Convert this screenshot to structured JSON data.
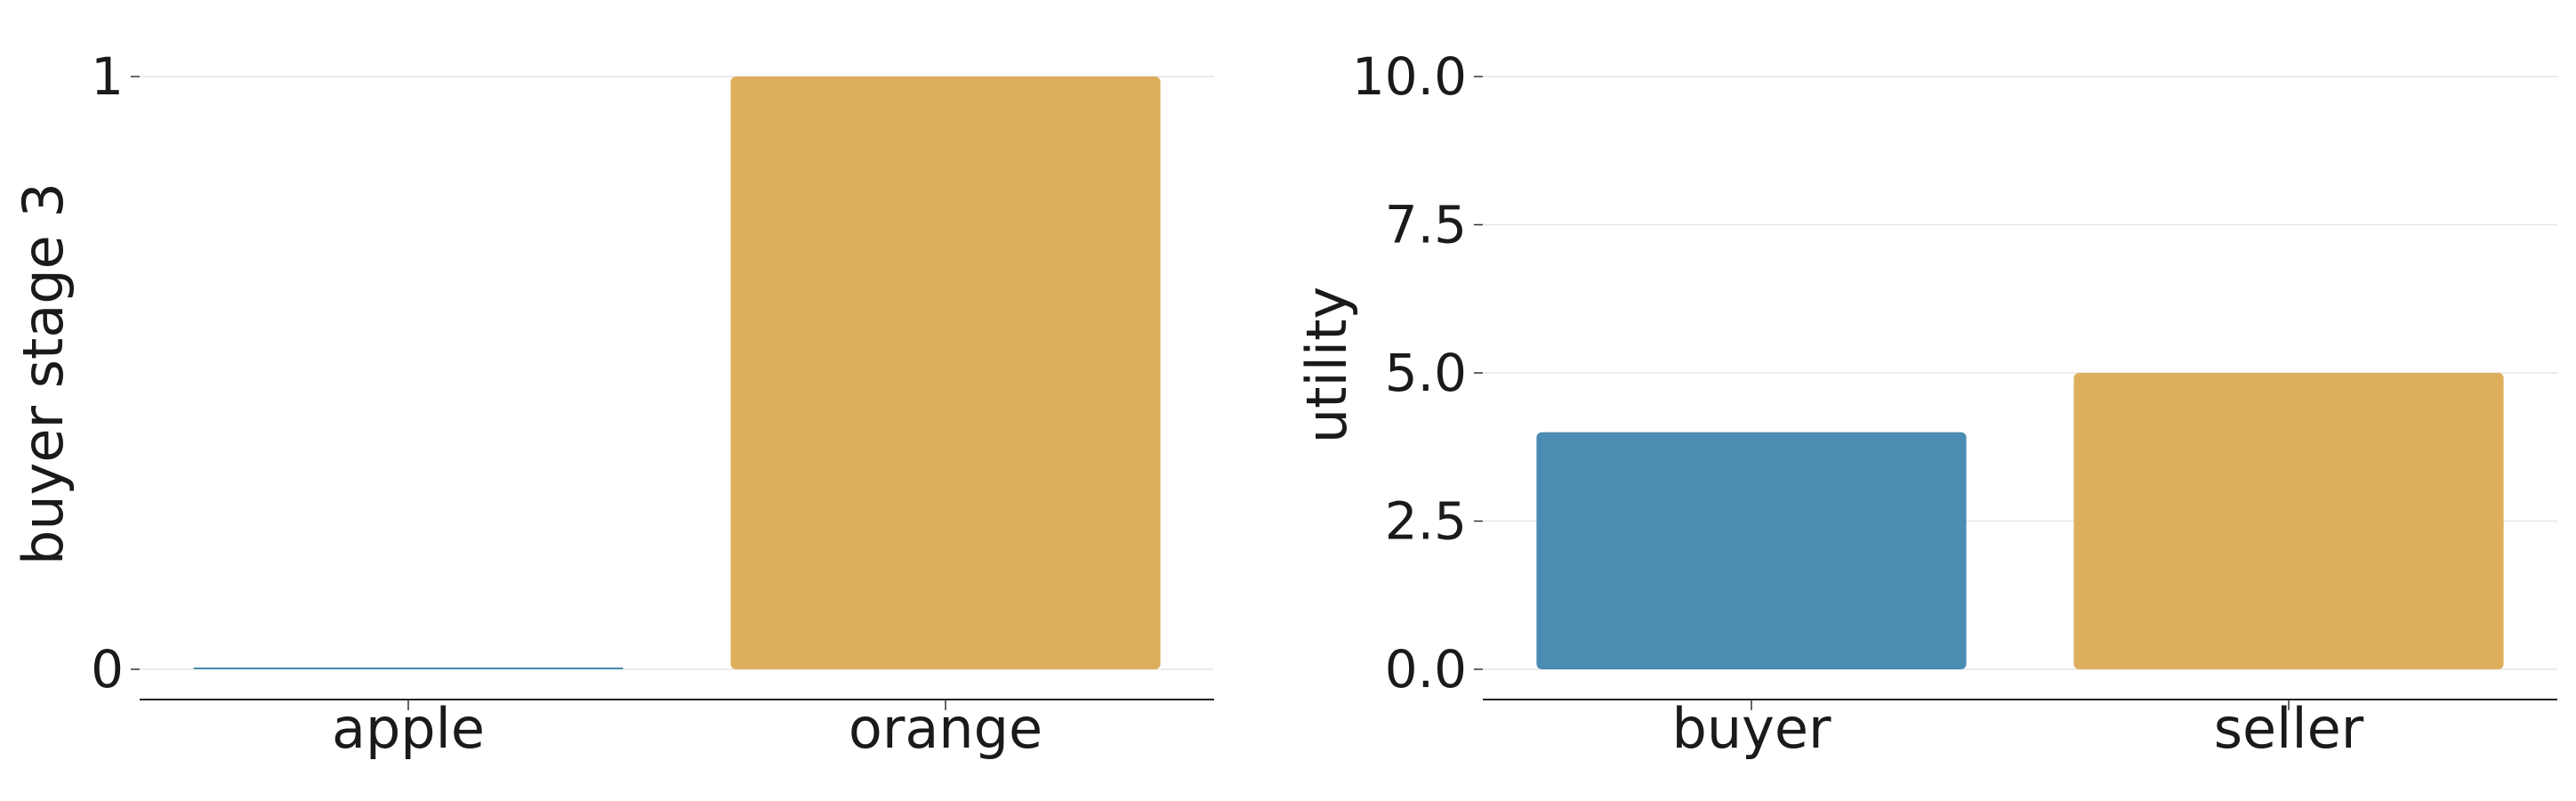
{
  "chart_data": [
    {
      "type": "bar",
      "categories": [
        "apple",
        "orange"
      ],
      "values": [
        0,
        1
      ],
      "colors": [
        "#4a8cb2",
        "#ddaf5d"
      ],
      "xlabel": "",
      "ylabel": "buyer stage 3",
      "ylim": [
        0,
        1
      ],
      "yticks": [
        0,
        1
      ],
      "ytick_labels": [
        "0",
        "1"
      ],
      "grid": true
    },
    {
      "type": "bar",
      "categories": [
        "buyer",
        "seller"
      ],
      "values": [
        4,
        5
      ],
      "colors": [
        "#4a8cb2",
        "#ddaf5d"
      ],
      "xlabel": "",
      "ylabel": "utility",
      "ylim": [
        0,
        10
      ],
      "yticks": [
        0,
        2.5,
        5,
        7.5,
        10
      ],
      "ytick_labels": [
        "0.0",
        "2.5",
        "5.0",
        "7.5",
        "10.0"
      ],
      "grid": true
    }
  ]
}
